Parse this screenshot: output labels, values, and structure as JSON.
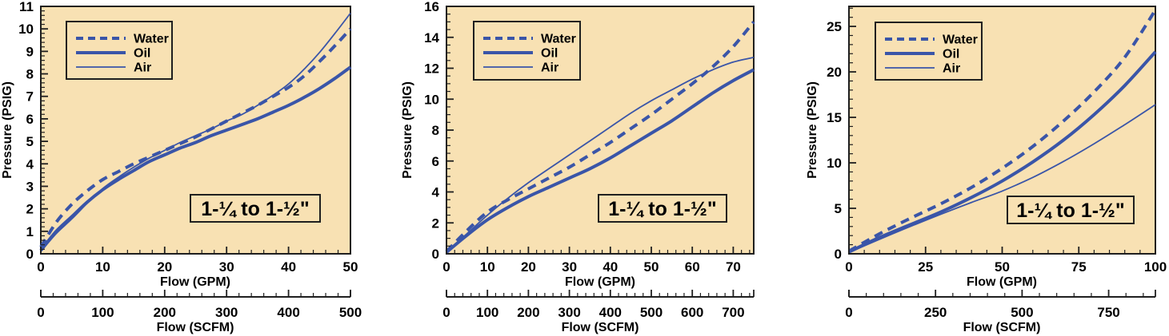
{
  "colors": {
    "plot_background": "#F8E1B3",
    "line_blue": "#3A55A8",
    "axis": "#1F1F1F",
    "text": "#000000"
  },
  "chart_data": [
    {
      "type": "line",
      "title": "",
      "xlabel": "Flow (GPM)",
      "ylabel": "Pressure (PSIG)",
      "x2label": "Flow (SCFM)",
      "annotation": "1-¼ to 1-½\"",
      "grid": false,
      "legend_position": "top-left",
      "xlim": [
        0,
        50
      ],
      "ylim": [
        0,
        11
      ],
      "x2lim": [
        0,
        500
      ],
      "xticks": [
        0,
        10,
        20,
        30,
        40,
        50
      ],
      "xminor_step": 2,
      "yticks": [
        0,
        1,
        2,
        3,
        4,
        5,
        6,
        7,
        8,
        9,
        10,
        11
      ],
      "yminor_step": 0.2,
      "x2ticks": [
        0,
        100,
        200,
        300,
        400,
        500
      ],
      "x2minor_step": 20,
      "series": [
        {
          "name": "Water",
          "style": "dashed",
          "x": [
            0,
            2.5,
            5,
            7.5,
            10,
            12.5,
            15,
            17.5,
            20,
            22.5,
            25,
            27.5,
            30,
            32.5,
            35,
            37.5,
            40,
            42.5,
            45,
            47.5,
            50
          ],
          "y": [
            0.3,
            1.4,
            2.2,
            2.8,
            3.3,
            3.65,
            4.0,
            4.3,
            4.6,
            4.9,
            5.2,
            5.55,
            5.9,
            6.25,
            6.6,
            7.0,
            7.4,
            7.9,
            8.55,
            9.25,
            10.0
          ]
        },
        {
          "name": "Oil",
          "style": "thick",
          "x": [
            0,
            2.5,
            5,
            7.5,
            10,
            12.5,
            15,
            17.5,
            20,
            22.5,
            25,
            27.5,
            30,
            32.5,
            35,
            37.5,
            40,
            42.5,
            45,
            47.5,
            50
          ],
          "y": [
            0.15,
            1.0,
            1.65,
            2.3,
            2.85,
            3.3,
            3.7,
            4.1,
            4.4,
            4.7,
            4.95,
            5.25,
            5.5,
            5.75,
            6.0,
            6.3,
            6.6,
            6.95,
            7.35,
            7.8,
            8.3
          ]
        },
        {
          "name": "Air",
          "style": "thin",
          "x": [
            0,
            2.5,
            5,
            7.5,
            10,
            12.5,
            15,
            17.5,
            20,
            22.5,
            25,
            27.5,
            30,
            32.5,
            35,
            37.5,
            40,
            42.5,
            45,
            47.5,
            50
          ],
          "y": [
            0.1,
            0.9,
            1.55,
            2.25,
            2.9,
            3.4,
            3.85,
            4.25,
            4.6,
            4.95,
            5.25,
            5.55,
            5.9,
            6.2,
            6.6,
            7.05,
            7.55,
            8.2,
            8.95,
            9.8,
            10.7
          ]
        }
      ]
    },
    {
      "type": "line",
      "title": "",
      "xlabel": "Flow (GPM)",
      "ylabel": "Pressure (PSIG)",
      "x2label": "Flow (SCFM)",
      "annotation": "1-¼ to 1-½\"",
      "grid": false,
      "legend_position": "top-left",
      "xlim": [
        0,
        75
      ],
      "ylim": [
        0,
        16
      ],
      "x2lim": [
        0,
        750
      ],
      "xticks": [
        0,
        10,
        20,
        30,
        40,
        50,
        60,
        70
      ],
      "xminor_step": 2,
      "yticks": [
        0,
        2,
        4,
        6,
        8,
        10,
        12,
        14,
        16
      ],
      "yminor_step": 0.5,
      "x2ticks": [
        0,
        100,
        200,
        300,
        400,
        500,
        600,
        700
      ],
      "x2minor_step": 20,
      "series": [
        {
          "name": "Water",
          "style": "dashed",
          "x": [
            0,
            5,
            10,
            15,
            20,
            25,
            30,
            35,
            40,
            45,
            50,
            55,
            60,
            65,
            70,
            75
          ],
          "y": [
            0.15,
            1.5,
            2.7,
            3.5,
            4.2,
            4.9,
            5.6,
            6.4,
            7.2,
            8.1,
            9.0,
            10.0,
            11.0,
            12.1,
            13.4,
            15.0
          ]
        },
        {
          "name": "Oil",
          "style": "thick",
          "x": [
            0,
            5,
            10,
            15,
            20,
            25,
            30,
            35,
            40,
            45,
            50,
            55,
            60,
            65,
            70,
            75
          ],
          "y": [
            0.1,
            1.2,
            2.2,
            3.0,
            3.7,
            4.3,
            4.9,
            5.5,
            6.2,
            7.0,
            7.8,
            8.6,
            9.5,
            10.4,
            11.2,
            11.9
          ]
        },
        {
          "name": "Air",
          "style": "thin",
          "x": [
            0,
            5,
            10,
            15,
            20,
            25,
            30,
            35,
            40,
            45,
            50,
            55,
            60,
            65,
            70,
            75
          ],
          "y": [
            0.1,
            1.3,
            2.5,
            3.6,
            4.6,
            5.5,
            6.4,
            7.3,
            8.2,
            9.1,
            9.9,
            10.6,
            11.3,
            11.9,
            12.4,
            12.7
          ]
        }
      ]
    },
    {
      "type": "line",
      "title": "",
      "xlabel": "Flow (GPM)",
      "ylabel": "Pressure (PSIG)",
      "x2label": "Flow (SCFM)",
      "annotation": "1-¼ to 1-½\"",
      "grid": false,
      "legend_position": "top-left",
      "xlim": [
        0,
        100
      ],
      "ylim": [
        0,
        27.2
      ],
      "x2lim": [
        0,
        885
      ],
      "xticks": [
        0,
        25,
        50,
        75,
        100
      ],
      "xminor_step": 5,
      "yticks": [
        0,
        5,
        10,
        15,
        20,
        25
      ],
      "yminor_step": 1,
      "x2ticks": [
        0,
        250,
        500,
        750
      ],
      "x2minor_step": 50,
      "series": [
        {
          "name": "Water",
          "style": "dashed",
          "x": [
            0,
            10,
            20,
            30,
            40,
            50,
            60,
            70,
            80,
            90,
            100
          ],
          "y": [
            0.3,
            2.2,
            3.9,
            5.5,
            7.3,
            9.4,
            11.8,
            14.6,
            17.8,
            21.6,
            26.8
          ]
        },
        {
          "name": "Oil",
          "style": "thick",
          "x": [
            0,
            10,
            20,
            30,
            40,
            50,
            60,
            70,
            80,
            90,
            100
          ],
          "y": [
            0.2,
            1.8,
            3.2,
            4.6,
            6.2,
            8.0,
            10.1,
            12.5,
            15.3,
            18.5,
            22.2
          ]
        },
        {
          "name": "Air",
          "style": "thin",
          "x": [
            0,
            10,
            20,
            30,
            40,
            50,
            60,
            70,
            80,
            90,
            100
          ],
          "y": [
            0.15,
            1.6,
            3.0,
            4.35,
            5.65,
            6.9,
            8.4,
            10.15,
            12.1,
            14.2,
            16.4
          ]
        }
      ]
    }
  ]
}
